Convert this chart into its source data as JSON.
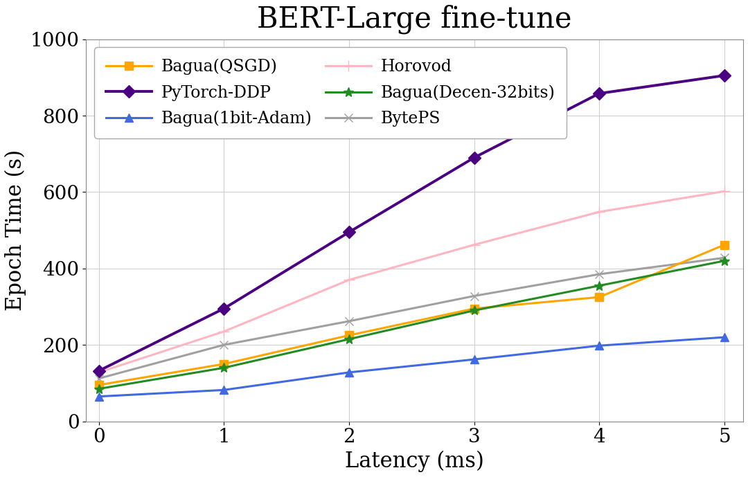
{
  "title": "BERT-Large fine-tune",
  "xlabel": "Latency (ms)",
  "ylabel": "Epoch Time (s)",
  "x": [
    0,
    1,
    2,
    3,
    4,
    5
  ],
  "series": [
    {
      "name": "Bagua(QSGD)",
      "y": [
        95,
        150,
        225,
        295,
        325,
        462
      ],
      "color": "#FFA500",
      "marker": "s",
      "linewidth": 2.2,
      "markersize": 8,
      "zorder": 3,
      "linestyle": "-"
    },
    {
      "name": "Bagua(1bit-Adam)",
      "y": [
        65,
        82,
        128,
        162,
        198,
        220
      ],
      "color": "#4169E1",
      "marker": "^",
      "linewidth": 2.2,
      "markersize": 8,
      "zorder": 3,
      "linestyle": "-"
    },
    {
      "name": "Bagua(Decen-32bits)",
      "y": [
        85,
        140,
        215,
        290,
        355,
        420
      ],
      "color": "#228B22",
      "marker": "*",
      "linewidth": 2.2,
      "markersize": 10,
      "zorder": 3,
      "linestyle": "-"
    },
    {
      "name": "PyTorch-DDP",
      "y": [
        132,
        295,
        495,
        690,
        858,
        905
      ],
      "color": "#4B0082",
      "marker": "D",
      "linewidth": 2.8,
      "markersize": 9,
      "zorder": 4,
      "linestyle": "-"
    },
    {
      "name": "Horovod",
      "y": [
        128,
        235,
        370,
        462,
        548,
        602
      ],
      "color": "#FFB6C1",
      "marker": "+",
      "linewidth": 2.2,
      "markersize": 11,
      "zorder": 2,
      "linestyle": "-"
    },
    {
      "name": "BytePS",
      "y": [
        112,
        200,
        262,
        328,
        385,
        428
      ],
      "color": "#A0A0A0",
      "marker": "x",
      "linewidth": 2.2,
      "markersize": 9,
      "zorder": 2,
      "linestyle": "-"
    }
  ],
  "ylim": [
    0,
    1000
  ],
  "xlim": [
    -0.1,
    5.15
  ],
  "yticks": [
    0,
    200,
    400,
    600,
    800,
    1000
  ],
  "xticks": [
    0,
    1,
    2,
    3,
    4,
    5
  ],
  "legend_loc": "upper left",
  "legend_ncol": 2,
  "grid": true,
  "title_fontsize": 30,
  "label_fontsize": 22,
  "tick_fontsize": 20,
  "legend_fontsize": 17,
  "plot_bg_color": "#ffffff",
  "fig_bg_color": "#ffffff",
  "grid_color": "#d0d0d0",
  "grid_linewidth": 0.8
}
